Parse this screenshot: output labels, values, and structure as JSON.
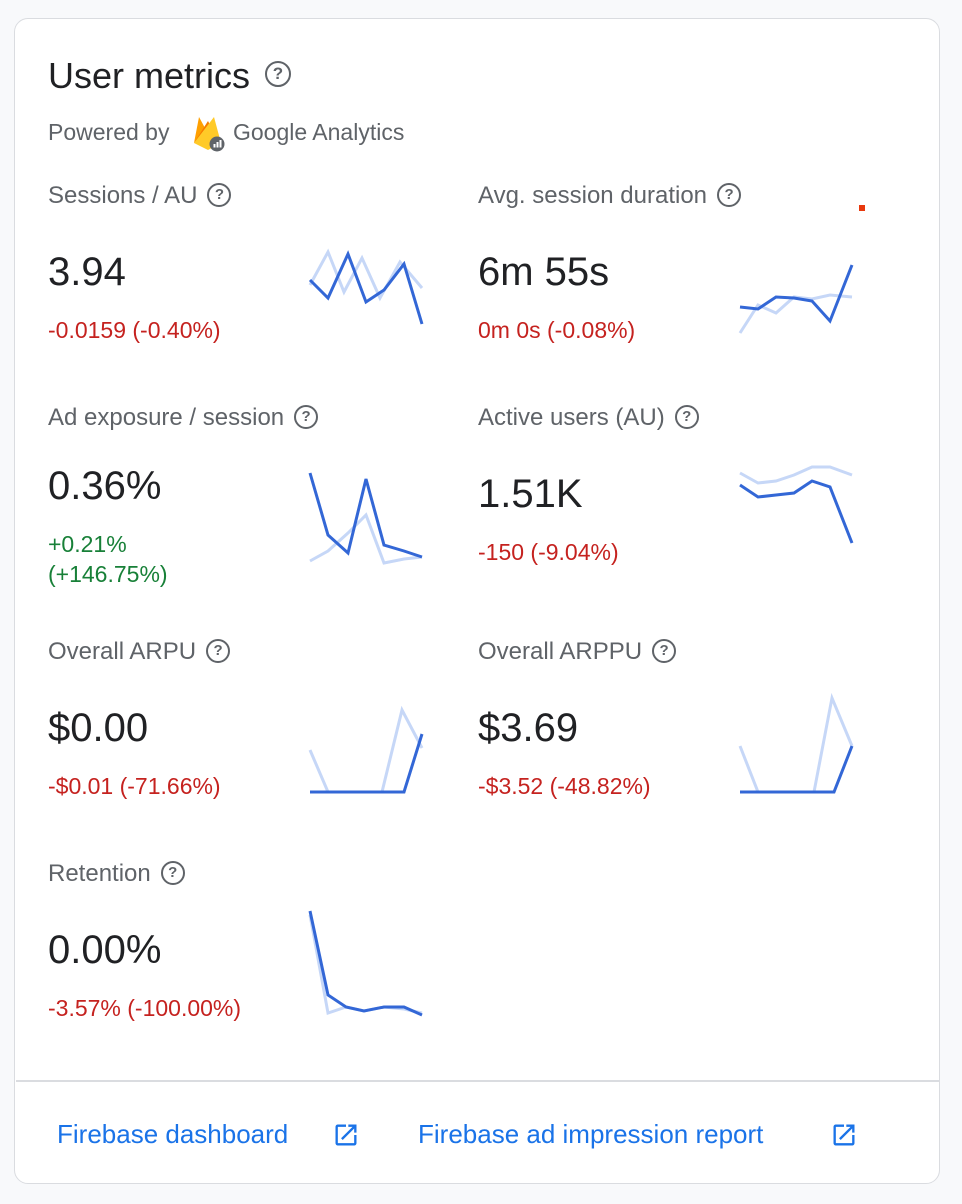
{
  "card": {
    "title": "User metrics",
    "powered_by": "Powered by",
    "provider": "Google Analytics"
  },
  "metrics": [
    {
      "label": "Sessions / AU",
      "value": "3.94",
      "delta": "-0.0159 (-0.40%)",
      "trend": "negative"
    },
    {
      "label": "Avg. session duration",
      "value": "6m 55s",
      "delta": "0m 0s (-0.08%)",
      "trend": "negative"
    },
    {
      "label": "Ad exposure / session",
      "value": "0.36%",
      "delta_line1": "+0.21%",
      "delta_line2": "(+146.75%)",
      "trend": "positive"
    },
    {
      "label": "Active users (AU)",
      "value": "1.51K",
      "delta": "-150 (-9.04%)",
      "trend": "negative"
    },
    {
      "label": "Overall ARPU",
      "value": "$0.00",
      "delta": "-$0.01 (-71.66%)",
      "trend": "negative"
    },
    {
      "label": "Overall ARPPU",
      "value": "$3.69",
      "delta": "-$3.52 (-48.82%)",
      "trend": "negative"
    },
    {
      "label": "Retention",
      "value": "0.00%",
      "delta": "-3.57% (-100.00%)",
      "trend": "negative"
    }
  ],
  "icons": {
    "help": "help-circle-icon",
    "logo": "firebase-logo-icon",
    "external": "open-in-new-icon"
  },
  "colors": {
    "current_line": "#3367d6",
    "previous_line": "#c6d7f7",
    "negative": "#c5221f",
    "positive": "#188038",
    "link": "#1a73e8"
  },
  "footer": {
    "link1": "Firebase dashboard",
    "link2": "Firebase ad impression report"
  }
}
